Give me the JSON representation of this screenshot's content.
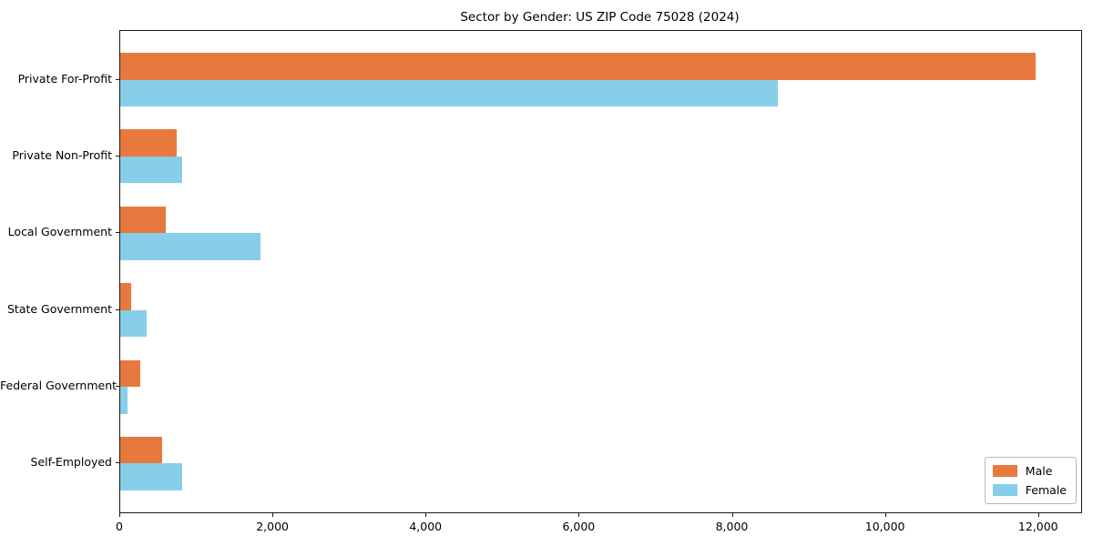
{
  "title": "Sector by Gender: US ZIP Code 75028 (2024)",
  "chart_data": {
    "type": "bar",
    "orientation": "horizontal",
    "title": "Sector by Gender: US ZIP Code 75028 (2024)",
    "categories": [
      "Private For-Profit",
      "Private Non-Profit",
      "Local Government",
      "State Government",
      "Federal Government",
      "Self-Employed"
    ],
    "series": [
      {
        "name": "Male",
        "color": "#e8793e",
        "values": [
          11950,
          740,
          600,
          145,
          260,
          550
        ]
      },
      {
        "name": "Female",
        "color": "#87ceeb",
        "values": [
          8590,
          810,
          1830,
          345,
          95,
          810
        ]
      }
    ],
    "xlabel": "",
    "ylabel": "",
    "xlim": [
      0,
      12550
    ],
    "xticks": [
      0,
      2000,
      4000,
      6000,
      8000,
      10000,
      12000
    ],
    "xtick_labels": [
      "0",
      "2,000",
      "4,000",
      "6,000",
      "8,000",
      "10,000",
      "12,000"
    ],
    "legend": {
      "position": "lower right",
      "entries": [
        "Male",
        "Female"
      ]
    },
    "grid": false,
    "plot_background": "#ffffff",
    "spine_color": "#1a1a1a"
  }
}
